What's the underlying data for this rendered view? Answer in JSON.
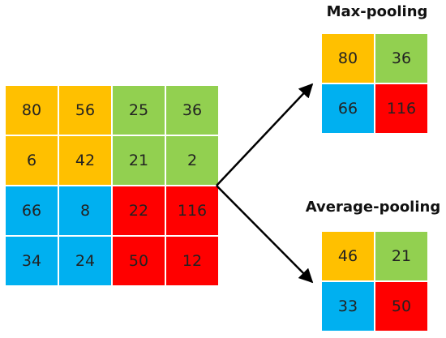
{
  "colors": {
    "orange": "#FFC000",
    "green": "#92D050",
    "blue": "#00B0F0",
    "red": "#FF0000"
  },
  "input": {
    "rows": [
      [
        {
          "v": "80",
          "c": "orange"
        },
        {
          "v": "56",
          "c": "orange"
        },
        {
          "v": "25",
          "c": "green"
        },
        {
          "v": "36",
          "c": "green"
        }
      ],
      [
        {
          "v": "6",
          "c": "orange"
        },
        {
          "v": "42",
          "c": "orange"
        },
        {
          "v": "21",
          "c": "green"
        },
        {
          "v": "2",
          "c": "green"
        }
      ],
      [
        {
          "v": "66",
          "c": "blue"
        },
        {
          "v": "8",
          "c": "blue"
        },
        {
          "v": "22",
          "c": "red"
        },
        {
          "v": "116",
          "c": "red"
        }
      ],
      [
        {
          "v": "34",
          "c": "blue"
        },
        {
          "v": "24",
          "c": "blue"
        },
        {
          "v": "50",
          "c": "red"
        },
        {
          "v": "12",
          "c": "red"
        }
      ]
    ]
  },
  "max_pooling": {
    "title": "Max-pooling",
    "rows": [
      [
        {
          "v": "80",
          "c": "orange"
        },
        {
          "v": "36",
          "c": "green"
        }
      ],
      [
        {
          "v": "66",
          "c": "blue"
        },
        {
          "v": "116",
          "c": "red"
        }
      ]
    ]
  },
  "average_pooling": {
    "title": "Average-pooling",
    "rows": [
      [
        {
          "v": "46",
          "c": "orange"
        },
        {
          "v": "21",
          "c": "green"
        }
      ],
      [
        {
          "v": "33",
          "c": "blue"
        },
        {
          "v": "50",
          "c": "red"
        }
      ]
    ]
  }
}
